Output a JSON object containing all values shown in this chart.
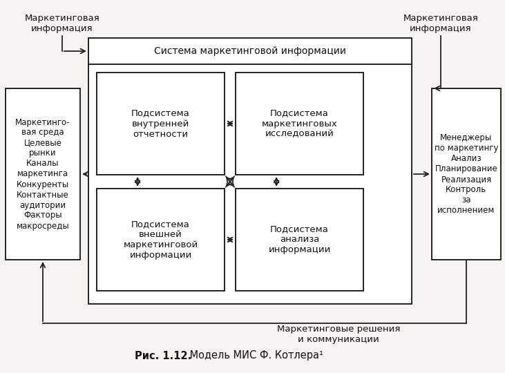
{
  "bg_color": "#f5f3ef",
  "box_white": "#ffffff",
  "box_edge": "#222222",
  "outer_fill": "#ffffff",
  "title": "Система маркетинговой информации",
  "sub_tl": "Подсистема\nвнутренней\nотчетности",
  "sub_tr": "Подсистема\nмаркетинговых\nисследований",
  "sub_bl": "Подсистема\nвнешней\nмаркетинговой\nинформации",
  "sub_br": "Подсистема\nанализа\nинформации",
  "left_text": "Маркетинго-\nвая среда\nЦелевые\nрынки\nКаналы\nмаркетинга\nКонкуренты\nКонтактные\nаудитории\nФакторы\nмакросреды",
  "right_text": "Менеджеры\nпо маркетингу\nАнализ\nПланирование\nРеализация\nКонтроль\nза\nисполнением",
  "lbl_top_left": "Маркетинговая\nинформация",
  "lbl_top_right": "Маркетинговая\nинформация",
  "lbl_bottom": "Маркетинговые решения\nи коммуникации",
  "caption_bold": "Рис. 1.12.",
  "caption_normal": " Модель МИС Ф. Котлера¹"
}
